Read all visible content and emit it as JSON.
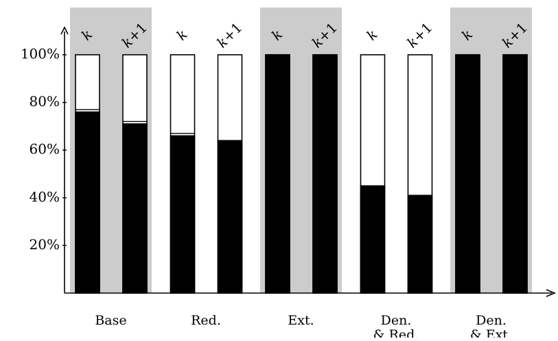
{
  "chart_data": {
    "type": "bar",
    "stacked": true,
    "ylim": [
      0,
      100
    ],
    "yticks": [
      {
        "value": 20,
        "label": "20%"
      },
      {
        "value": 40,
        "label": "40%"
      },
      {
        "value": 60,
        "label": "60%"
      },
      {
        "value": 80,
        "label": "80%"
      },
      {
        "value": 100,
        "label": "100%"
      }
    ],
    "grid": false,
    "legend": "none",
    "colors": {
      "filled": "#000000",
      "empty": "#ffffff",
      "group_shade": "#cccccc",
      "axis": "#000000"
    },
    "groups": [
      {
        "label_lines": [
          "Base"
        ],
        "shaded": true,
        "bars": [
          {
            "label": "k",
            "filled": 76,
            "line": 77,
            "total": 100
          },
          {
            "label": "k+1",
            "filled": 71,
            "line": 72,
            "total": 100
          }
        ]
      },
      {
        "label_lines": [
          "Red."
        ],
        "shaded": false,
        "bars": [
          {
            "label": "k",
            "filled": 66,
            "line": 67,
            "total": 100
          },
          {
            "label": "k+1",
            "filled": 64,
            "line": 64,
            "total": 100
          }
        ]
      },
      {
        "label_lines": [
          "Ext."
        ],
        "shaded": true,
        "bars": [
          {
            "label": "k",
            "filled": 100,
            "line": 100,
            "total": 100
          },
          {
            "label": "k+1",
            "filled": 100,
            "line": 100,
            "total": 100
          }
        ]
      },
      {
        "label_lines": [
          "Den.",
          "& Red."
        ],
        "shaded": false,
        "bars": [
          {
            "label": "k",
            "filled": 45,
            "line": 45,
            "total": 100
          },
          {
            "label": "k+1",
            "filled": 41,
            "line": 41,
            "total": 100
          }
        ]
      },
      {
        "label_lines": [
          "Den.",
          "& Ext."
        ],
        "shaded": true,
        "bars": [
          {
            "label": "k",
            "filled": 100,
            "line": 100,
            "total": 100
          },
          {
            "label": "k+1",
            "filled": 100,
            "line": 100,
            "total": 100
          }
        ]
      }
    ]
  }
}
